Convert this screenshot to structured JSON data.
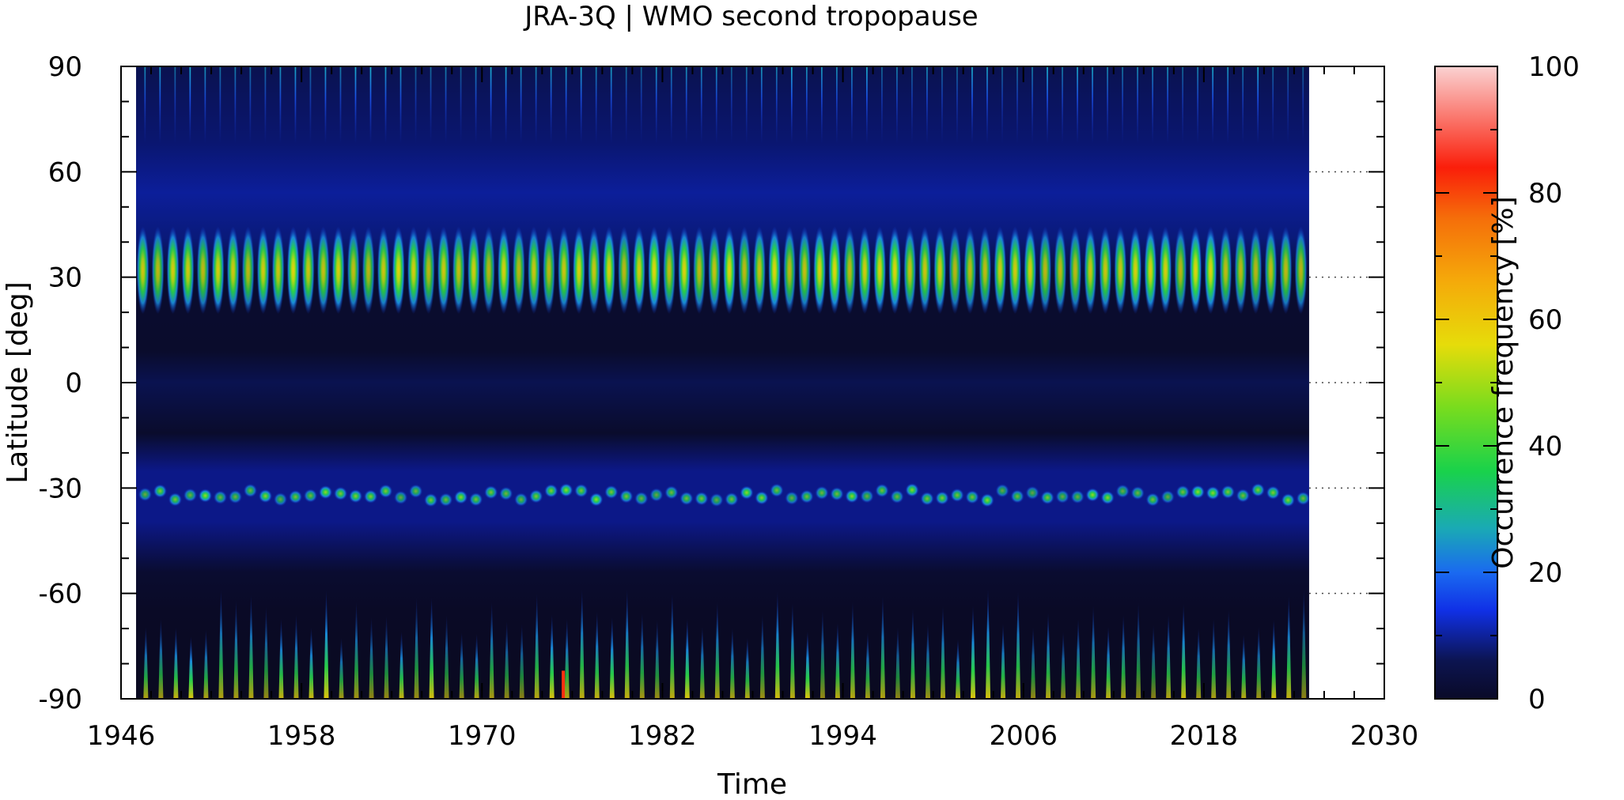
{
  "chart_data": {
    "type": "heatmap",
    "title": "JRA-3Q | WMO second tropopause",
    "xlabel": "Time",
    "ylabel": "Latitude [deg]",
    "colorbar_label": "Occurrence frequency [%]",
    "xlim": [
      1946,
      2030
    ],
    "ylim": [
      -90,
      90
    ],
    "data_x_range": [
      1947,
      2025
    ],
    "x_ticks": [
      "1946",
      "1958",
      "1970",
      "1982",
      "1994",
      "2006",
      "2018",
      "2030"
    ],
    "y_ticks": [
      "90",
      "60",
      "30",
      "0",
      "-30",
      "-60",
      "-90"
    ],
    "colorbar_range": [
      0,
      100
    ],
    "colorbar_ticks": [
      "100",
      "80",
      "60",
      "40",
      "20",
      "0"
    ],
    "colormap": [
      "#0a0a28",
      "#0c1450",
      "#1030c8",
      "#1a6af0",
      "#1ab4c8",
      "#19d24b",
      "#78dc1e",
      "#e6dc0a",
      "#f5aa0a",
      "#f56e0a",
      "#fa1e0a",
      "#fac8c8"
    ],
    "features": [
      {
        "latitude": 32,
        "peak_value": 60,
        "description": "northern subtropical maximum, annual cycle"
      },
      {
        "latitude": -32,
        "peak_value": 45,
        "description": "southern subtropical maximum"
      },
      {
        "latitude": -90,
        "peak_value": 80,
        "description": "Antarctic winter spikes"
      }
    ],
    "grid": false
  }
}
